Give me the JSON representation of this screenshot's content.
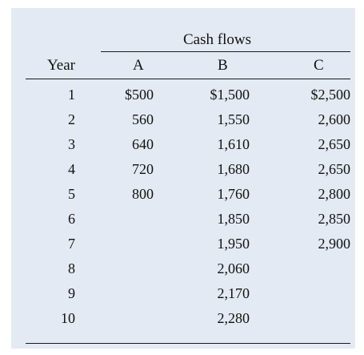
{
  "table": {
    "group_header": "Cash flows",
    "col_year": "Year",
    "col_a": "A",
    "col_b": "B",
    "col_c": "C",
    "rows": [
      {
        "year": "1",
        "a": "$500",
        "b": "$1,500",
        "c": "$2,500"
      },
      {
        "year": "2",
        "a": "560",
        "b": "1,550",
        "c": "2,600"
      },
      {
        "year": "3",
        "a": "640",
        "b": "1,610",
        "c": "2,650"
      },
      {
        "year": "4",
        "a": "720",
        "b": "1,680",
        "c": "2,650"
      },
      {
        "year": "5",
        "a": "800",
        "b": "1,760",
        "c": "2,800"
      },
      {
        "year": "6",
        "a": "",
        "b": "1,850",
        "c": "2,850"
      },
      {
        "year": "7",
        "a": "",
        "b": "1,950",
        "c": "2,900"
      },
      {
        "year": "8",
        "a": "",
        "b": "2,060",
        "c": ""
      },
      {
        "year": "9",
        "a": "",
        "b": "2,170",
        "c": ""
      },
      {
        "year": "10",
        "a": "",
        "b": "2,280",
        "c": ""
      }
    ]
  }
}
